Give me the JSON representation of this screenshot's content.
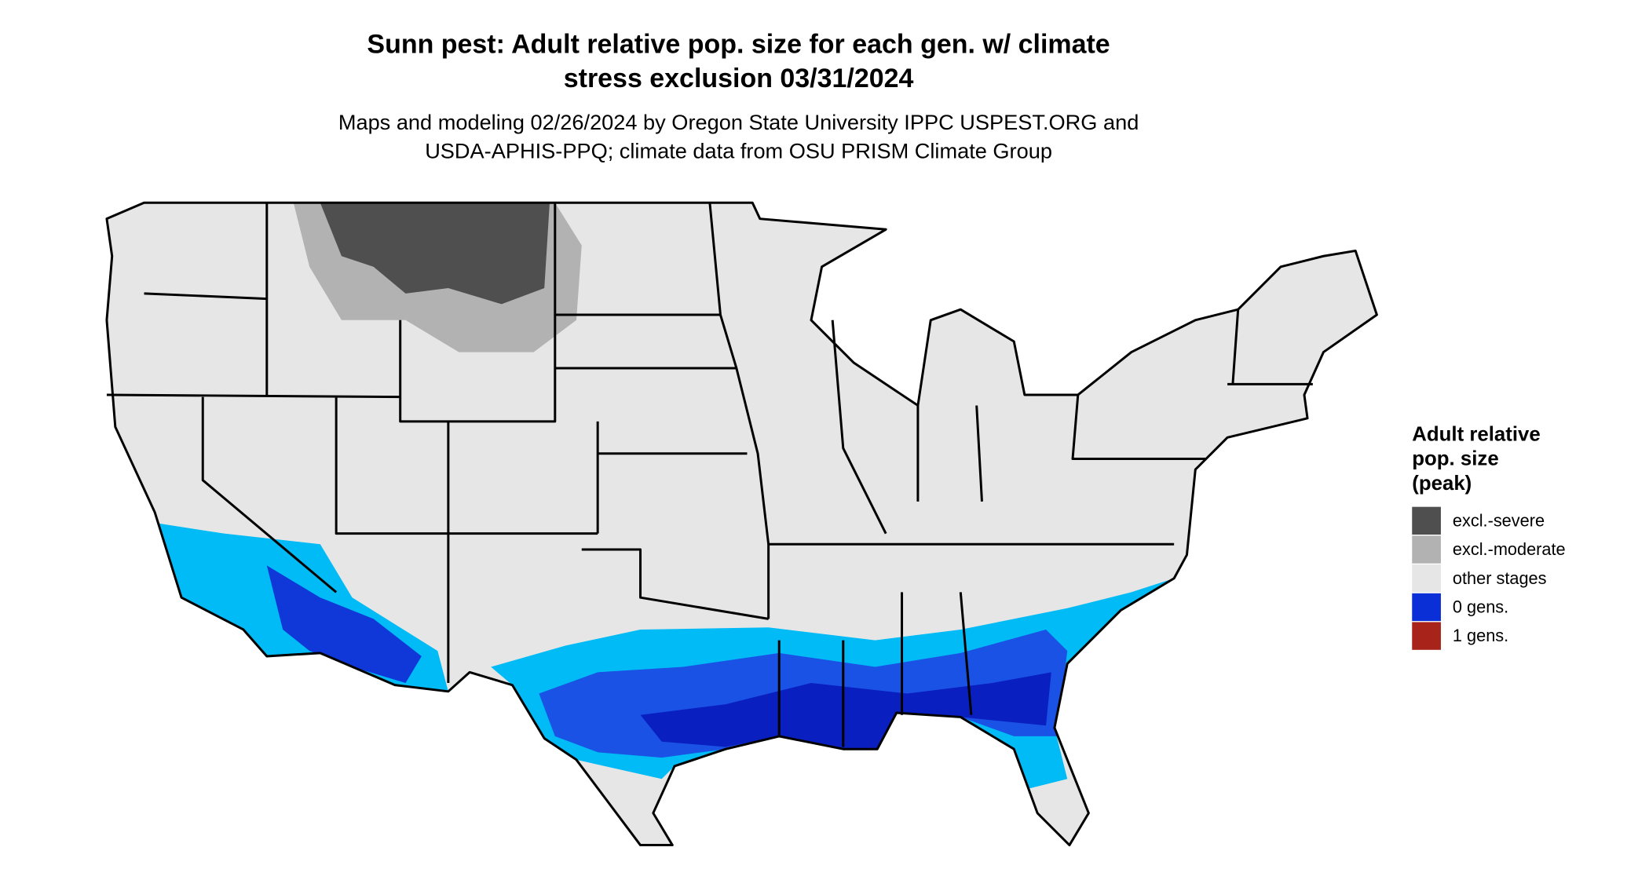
{
  "title_lines": [
    "Sunn pest: Adult relative pop. size for each gen. w/ climate",
    "stress exclusion 03/31/2024"
  ],
  "subtitle_lines": [
    "Maps and modeling 02/26/2024 by Oregon State University IPPC USPEST.ORG and",
    "USDA-APHIS-PPQ; climate data from OSU PRISM Climate Group"
  ],
  "legend": {
    "title_lines": [
      "Adult relative",
      "pop. size",
      "(peak)"
    ],
    "items": [
      {
        "label": "excl.-severe",
        "color": "#4f4f4f"
      },
      {
        "label": "excl.-moderate",
        "color": "#b2b2b2"
      },
      {
        "label": "other stages",
        "color": "#e6e6e6"
      },
      {
        "label": "0 gens.",
        "color": "#0a2fd6"
      },
      {
        "label": "1 gens.",
        "color": "#a8231a"
      }
    ]
  }
}
